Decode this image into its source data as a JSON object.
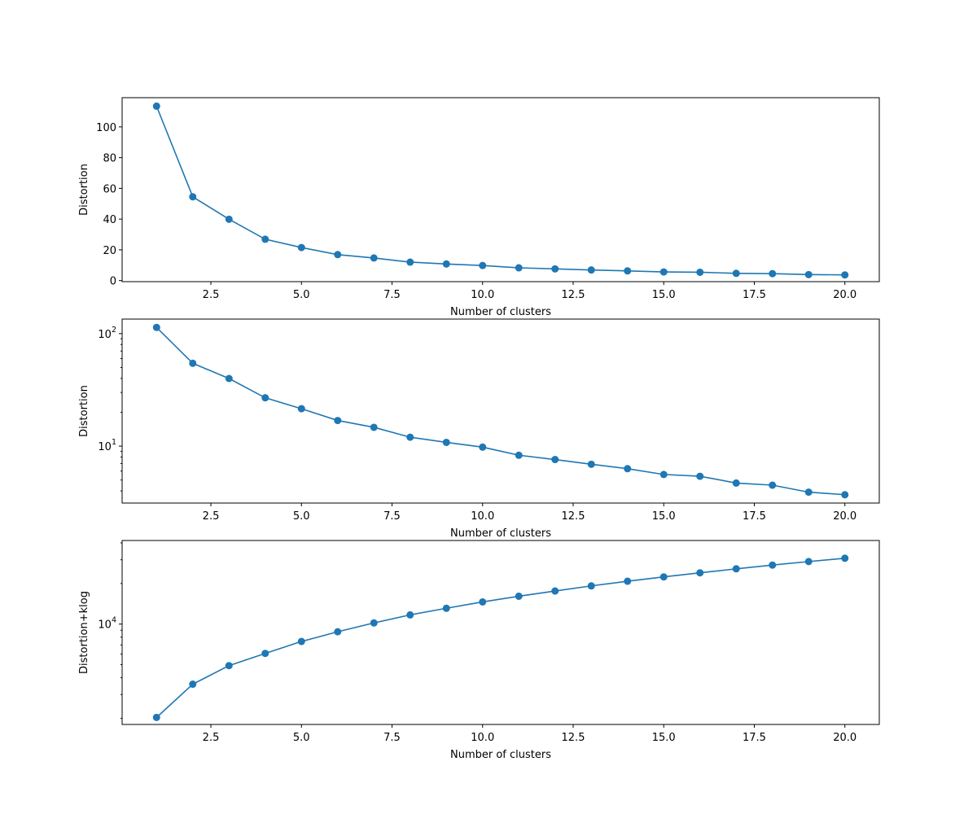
{
  "chart_data": [
    {
      "type": "line",
      "yscale": "linear",
      "xlabel": "Number of clusters",
      "ylabel": "Distortion",
      "xlim": [
        0.05,
        20.95
      ],
      "ylim": [
        -0.7,
        119
      ],
      "xticks": [
        2.5,
        5.0,
        7.5,
        10.0,
        12.5,
        15.0,
        17.5,
        20.0
      ],
      "xtick_labels": [
        "2.5",
        "5.0",
        "7.5",
        "10.0",
        "12.5",
        "15.0",
        "17.5",
        "20.0"
      ],
      "yticks": [
        0,
        20,
        40,
        60,
        80,
        100
      ],
      "ytick_labels": [
        "0",
        "20",
        "40",
        "60",
        "80",
        "100"
      ],
      "color": "#1f77b4",
      "marker": "circle",
      "grid": false,
      "x": [
        1,
        2,
        3,
        4,
        5,
        6,
        7,
        8,
        9,
        10,
        11,
        12,
        13,
        14,
        15,
        16,
        17,
        18,
        19,
        20
      ],
      "y": [
        113.5,
        54.5,
        39.9,
        26.9,
        21.5,
        16.9,
        14.7,
        12.0,
        10.8,
        9.8,
        8.3,
        7.6,
        6.9,
        6.3,
        5.6,
        5.4,
        4.7,
        4.5,
        3.9,
        3.7
      ]
    },
    {
      "type": "line",
      "yscale": "log",
      "xlabel": "Number of clusters",
      "ylabel": "Distortion",
      "xlim": [
        0.05,
        20.95
      ],
      "ylim": [
        3.12,
        134.6
      ],
      "xticks": [
        2.5,
        5.0,
        7.5,
        10.0,
        12.5,
        15.0,
        17.5,
        20.0
      ],
      "xtick_labels": [
        "2.5",
        "5.0",
        "7.5",
        "10.0",
        "12.5",
        "15.0",
        "17.5",
        "20.0"
      ],
      "yticks": [
        10,
        100
      ],
      "ytick_labels": [
        "10^1",
        "10^2"
      ],
      "yticks_minor": [
        4,
        5,
        6,
        7,
        8,
        9,
        20,
        30,
        40,
        50,
        60,
        70,
        80,
        90
      ],
      "color": "#1f77b4",
      "marker": "circle",
      "grid": false,
      "x": [
        1,
        2,
        3,
        4,
        5,
        6,
        7,
        8,
        9,
        10,
        11,
        12,
        13,
        14,
        15,
        16,
        17,
        18,
        19,
        20
      ],
      "y": [
        113.5,
        54.5,
        39.9,
        26.9,
        21.5,
        16.9,
        14.7,
        12.0,
        10.8,
        9.8,
        8.3,
        7.6,
        6.9,
        6.3,
        5.6,
        5.4,
        4.7,
        4.5,
        3.9,
        3.7
      ]
    },
    {
      "type": "line",
      "yscale": "log",
      "xlabel": "Number of clusters",
      "ylabel": "Distortion+klog",
      "xlim": [
        0.05,
        20.95
      ],
      "ylim": [
        1800,
        41700
      ],
      "xticks": [
        2.5,
        5.0,
        7.5,
        10.0,
        12.5,
        15.0,
        17.5,
        20.0
      ],
      "xtick_labels": [
        "2.5",
        "5.0",
        "7.5",
        "10.0",
        "12.5",
        "15.0",
        "17.5",
        "20.0"
      ],
      "yticks": [
        10000
      ],
      "ytick_labels": [
        "10^4"
      ],
      "yticks_minor": [
        2000,
        3000,
        4000,
        5000,
        6000,
        7000,
        8000,
        9000,
        20000,
        30000,
        40000
      ],
      "color": "#1f77b4",
      "marker": "circle",
      "grid": false,
      "x": [
        1,
        2,
        3,
        4,
        5,
        6,
        7,
        8,
        9,
        10,
        11,
        12,
        13,
        14,
        15,
        16,
        17,
        18,
        19,
        20
      ],
      "y": [
        2030,
        3580,
        4920,
        6060,
        7430,
        8770,
        10200,
        11700,
        13100,
        14600,
        16100,
        17600,
        19200,
        20800,
        22400,
        24000,
        25700,
        27400,
        29100,
        30800
      ]
    }
  ]
}
